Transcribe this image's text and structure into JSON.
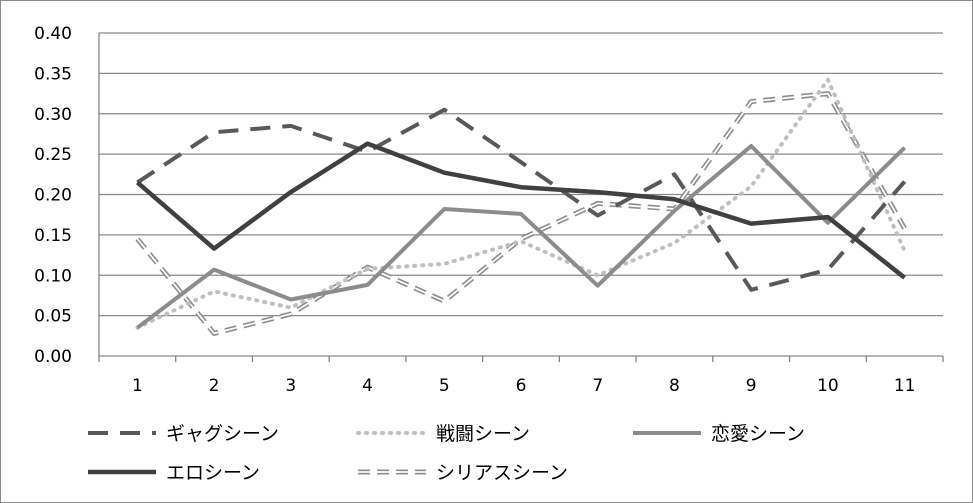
{
  "chart_data": {
    "type": "line",
    "title": "",
    "xlabel": "",
    "ylabel": "",
    "x": [
      "1",
      "2",
      "3",
      "4",
      "5",
      "6",
      "7",
      "8",
      "9",
      "10",
      "11"
    ],
    "ylim": [
      0,
      0.4
    ],
    "yticks": [
      "0.00",
      "0.05",
      "0.10",
      "0.15",
      "0.20",
      "0.25",
      "0.30",
      "0.35",
      "0.40"
    ],
    "grid": true,
    "legend_position": "bottom",
    "series": [
      {
        "name": "ギャグシーン",
        "values": [
          0.215,
          0.277,
          0.285,
          0.253,
          0.305,
          0.24,
          0.174,
          0.225,
          0.082,
          0.107,
          0.216
        ],
        "color": "#595959",
        "style": "dashed"
      },
      {
        "name": "戦闘シーン",
        "values": [
          0.035,
          0.08,
          0.06,
          0.108,
          0.114,
          0.142,
          0.1,
          0.14,
          0.21,
          0.342,
          0.13
        ],
        "color": "#bfbfbf",
        "style": "dotted"
      },
      {
        "name": "恋愛シーン",
        "values": [
          0.035,
          0.107,
          0.07,
          0.088,
          0.182,
          0.176,
          0.087,
          0.18,
          0.26,
          0.165,
          0.258
        ],
        "color": "#8c8c8c",
        "style": "solid"
      },
      {
        "name": "エロシーン",
        "values": [
          0.215,
          0.133,
          0.203,
          0.263,
          0.227,
          0.209,
          0.203,
          0.194,
          0.164,
          0.172,
          0.097
        ],
        "color": "#404040",
        "style": "solid-thick"
      },
      {
        "name": "シリアスシーン",
        "values": [
          0.145,
          0.028,
          0.052,
          0.11,
          0.068,
          0.145,
          0.189,
          0.182,
          0.315,
          0.325,
          0.158
        ],
        "color": "#8c8c8c",
        "style": "double"
      }
    ]
  }
}
